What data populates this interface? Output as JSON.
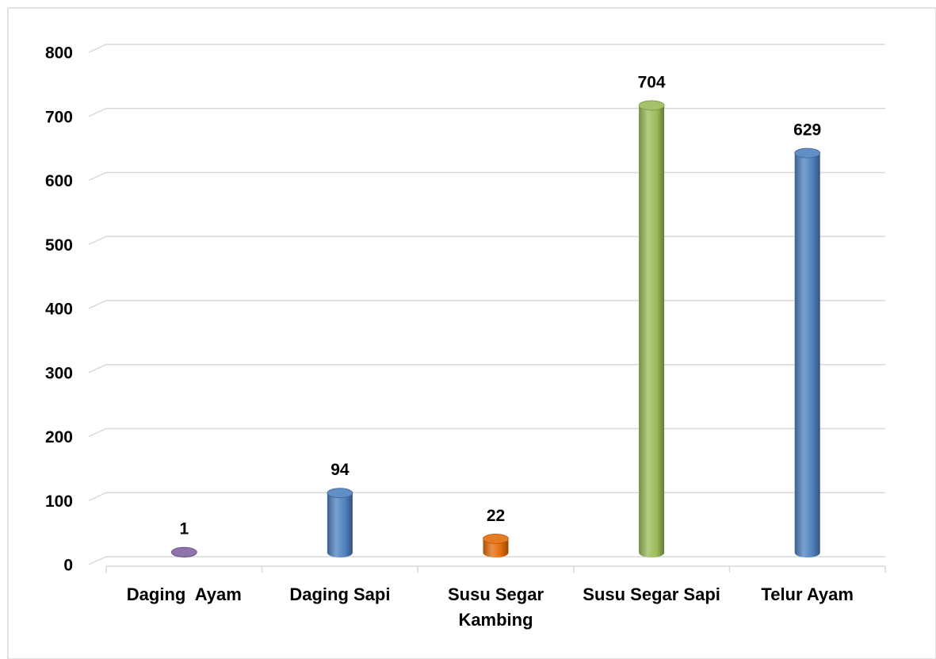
{
  "chart_data": {
    "type": "bar",
    "categories": [
      "Daging  Ayam",
      "Daging Sapi",
      "Susu Segar Kambing",
      "Susu Segar Sapi",
      "Telur Ayam"
    ],
    "values": [
      1,
      94,
      22,
      704,
      629
    ],
    "colors": [
      "#8064a2",
      "#4f81bd",
      "#e46c0a",
      "#9bbb59",
      "#4f81bd"
    ],
    "ylim": [
      0,
      800
    ],
    "yticks": [
      0,
      100,
      200,
      300,
      400,
      500,
      600,
      700,
      800
    ],
    "grid": true
  }
}
